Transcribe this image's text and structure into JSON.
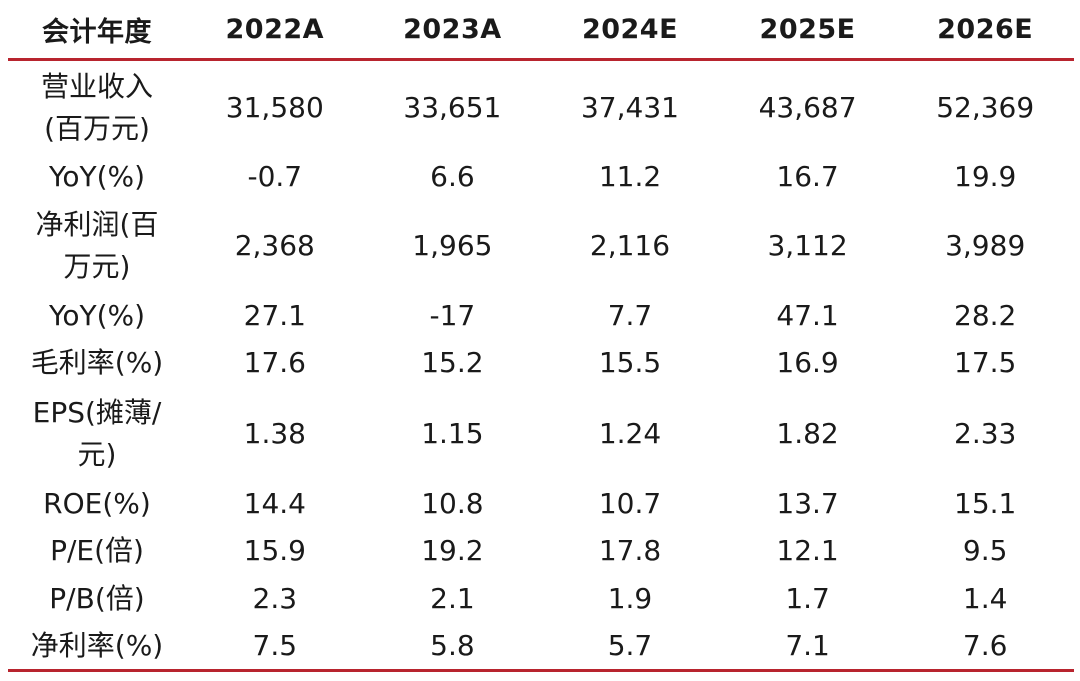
{
  "table": {
    "header": [
      "会计年度",
      "2022A",
      "2023A",
      "2024E",
      "2025E",
      "2026E"
    ],
    "rows": [
      {
        "label_lines": [
          "营业收入",
          "(百万元)"
        ],
        "values": [
          "31,580",
          "33,651",
          "37,431",
          "43,687",
          "52,369"
        ]
      },
      {
        "label_lines": [
          "YoY(%)"
        ],
        "values": [
          "-0.7",
          "6.6",
          "11.2",
          "16.7",
          "19.9"
        ]
      },
      {
        "label_lines": [
          "净利润(百",
          "万元)"
        ],
        "values": [
          "2,368",
          "1,965",
          "2,116",
          "3,112",
          "3,989"
        ]
      },
      {
        "label_lines": [
          "YoY(%)"
        ],
        "values": [
          "27.1",
          "-17",
          "7.7",
          "47.1",
          "28.2"
        ]
      },
      {
        "label_lines": [
          "毛利率(%)"
        ],
        "values": [
          "17.6",
          "15.2",
          "15.5",
          "16.9",
          "17.5"
        ]
      },
      {
        "label_lines": [
          "EPS(摊薄/",
          "元)"
        ],
        "values": [
          "1.38",
          "1.15",
          "1.24",
          "1.82",
          "2.33"
        ]
      },
      {
        "label_lines": [
          "ROE(%)"
        ],
        "values": [
          "14.4",
          "10.8",
          "10.7",
          "13.7",
          "15.1"
        ]
      },
      {
        "label_lines": [
          "P/E(倍)"
        ],
        "values": [
          "15.9",
          "19.2",
          "17.8",
          "12.1",
          "9.5"
        ]
      },
      {
        "label_lines": [
          "P/B(倍)"
        ],
        "values": [
          "2.3",
          "2.1",
          "1.9",
          "1.7",
          "1.4"
        ]
      },
      {
        "label_lines": [
          "净利率(%)"
        ],
        "values": [
          "7.5",
          "5.8",
          "5.7",
          "7.1",
          "7.6"
        ]
      }
    ]
  },
  "colors": {
    "rule": "#b8242e",
    "text": "#1a1a1a"
  }
}
